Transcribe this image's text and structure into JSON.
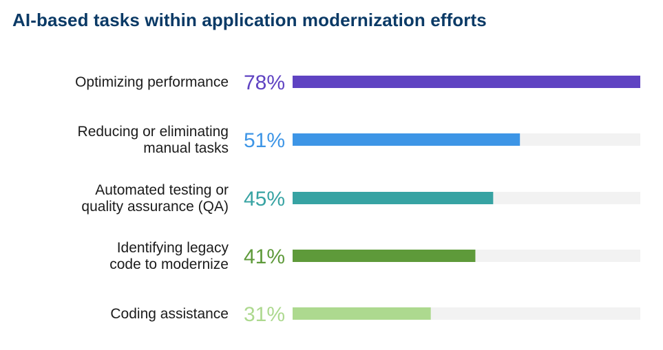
{
  "chart_data": {
    "type": "bar",
    "orientation": "horizontal",
    "title": "AI-based tasks within application modernization efforts",
    "categories": [
      "Optimizing performance",
      "Reducing or eliminating manual tasks",
      "Automated testing or quality assurance (QA)",
      "Identifying legacy code to modernize",
      "Coding assistance"
    ],
    "category_lines": [
      [
        "Optimizing performance"
      ],
      [
        "Reducing or eliminating",
        "manual tasks"
      ],
      [
        "Automated testing or",
        "quality assurance (QA)"
      ],
      [
        "Identifying legacy",
        "code to modernize"
      ],
      [
        "Coding assistance"
      ]
    ],
    "values": [
      78,
      51,
      45,
      41,
      31
    ],
    "value_labels": [
      "78%",
      "51%",
      "45%",
      "41%",
      "31%"
    ],
    "colors": [
      "#5f43c2",
      "#3d95e6",
      "#37a3a3",
      "#5e9a3a",
      "#add98f"
    ],
    "track_color": "#f2f2f2",
    "title_color": "#0b3a66",
    "xlim": [
      0,
      78
    ],
    "grid": false,
    "legend": "none"
  }
}
